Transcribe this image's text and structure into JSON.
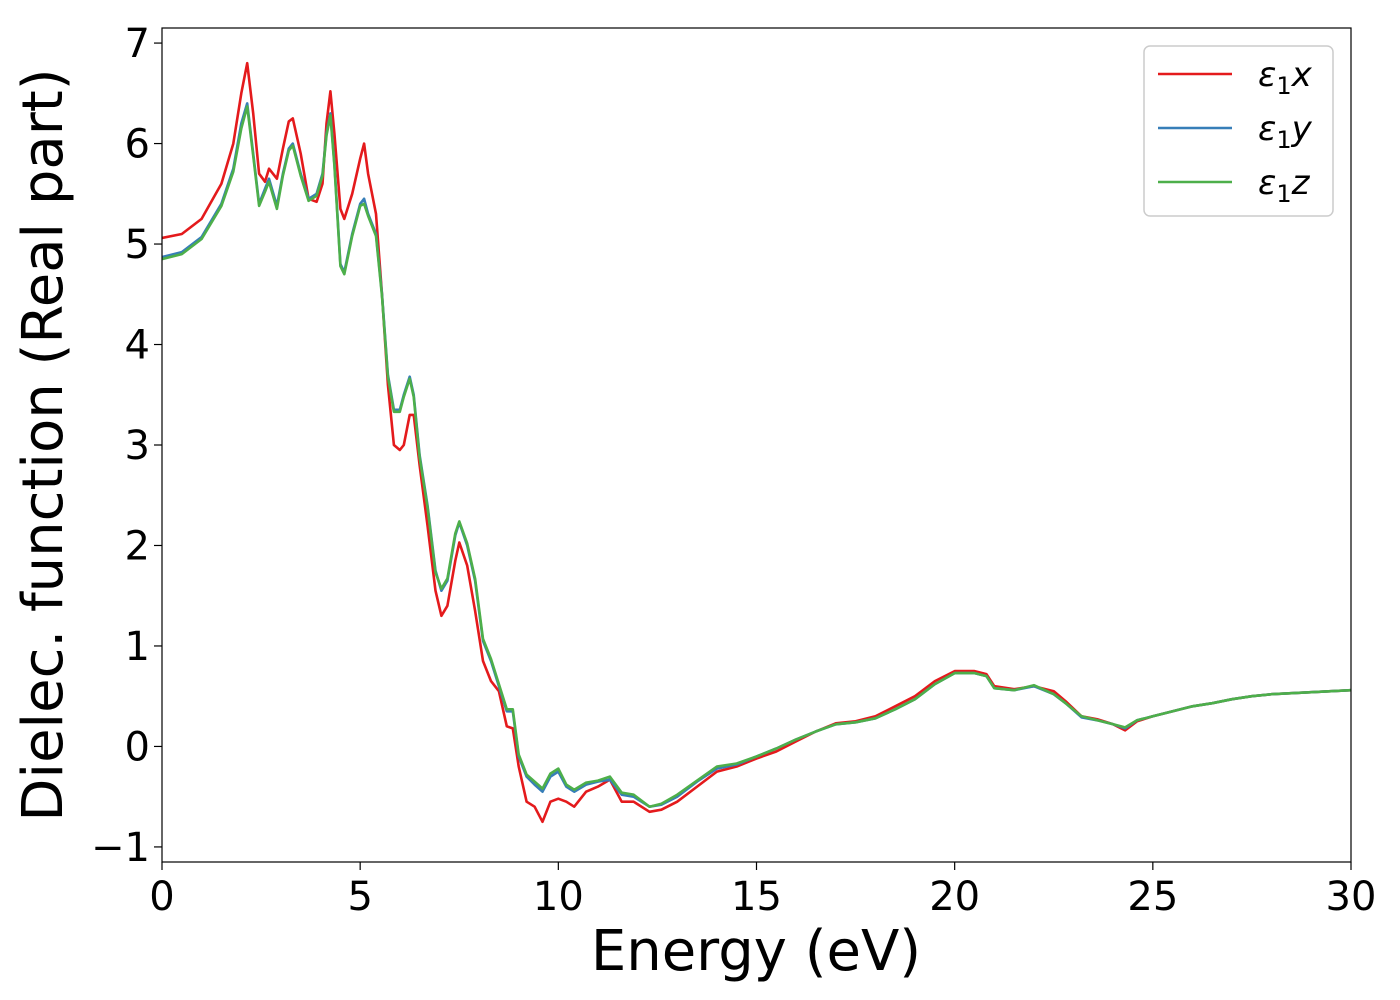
{
  "chart_data": {
    "type": "line",
    "title": "",
    "xlabel": "Energy (eV)",
    "ylabel": "Dielec. function (Real part)",
    "xlim": [
      0,
      30
    ],
    "ylim": [
      -1.15,
      7.15
    ],
    "xticks": [
      0,
      5,
      10,
      15,
      20,
      25,
      30
    ],
    "xtick_labels": [
      "0",
      "5",
      "10",
      "15",
      "20",
      "25",
      "30"
    ],
    "yticks": [
      -1,
      0,
      1,
      2,
      3,
      4,
      5,
      6,
      7
    ],
    "ytick_labels": [
      "−1",
      "0",
      "1",
      "2",
      "3",
      "4",
      "5",
      "6",
      "7"
    ],
    "grid": false,
    "legend_position": "top-right",
    "series": [
      {
        "name": "ε₁x",
        "legend_base": "ε",
        "legend_sub": "1",
        "legend_suffix": "x",
        "color": "#e41a1c",
        "points": [
          [
            0,
            5.06
          ],
          [
            0.5,
            5.1
          ],
          [
            1,
            5.25
          ],
          [
            1.5,
            5.6
          ],
          [
            1.8,
            6.0
          ],
          [
            2.0,
            6.5
          ],
          [
            2.15,
            6.8
          ],
          [
            2.3,
            6.3
          ],
          [
            2.45,
            5.7
          ],
          [
            2.6,
            5.62
          ],
          [
            2.7,
            5.75
          ],
          [
            2.9,
            5.65
          ],
          [
            3.05,
            5.95
          ],
          [
            3.2,
            6.22
          ],
          [
            3.3,
            6.25
          ],
          [
            3.5,
            5.9
          ],
          [
            3.7,
            5.45
          ],
          [
            3.9,
            5.42
          ],
          [
            4.05,
            5.6
          ],
          [
            4.15,
            6.2
          ],
          [
            4.25,
            6.52
          ],
          [
            4.35,
            6.1
          ],
          [
            4.5,
            5.35
          ],
          [
            4.6,
            5.25
          ],
          [
            4.8,
            5.5
          ],
          [
            5.0,
            5.85
          ],
          [
            5.1,
            6.0
          ],
          [
            5.2,
            5.7
          ],
          [
            5.4,
            5.3
          ],
          [
            5.55,
            4.5
          ],
          [
            5.7,
            3.6
          ],
          [
            5.85,
            3.0
          ],
          [
            6.0,
            2.95
          ],
          [
            6.1,
            3.0
          ],
          [
            6.25,
            3.3
          ],
          [
            6.35,
            3.3
          ],
          [
            6.5,
            2.8
          ],
          [
            6.7,
            2.2
          ],
          [
            6.9,
            1.55
          ],
          [
            7.05,
            1.3
          ],
          [
            7.2,
            1.4
          ],
          [
            7.4,
            1.85
          ],
          [
            7.5,
            2.03
          ],
          [
            7.7,
            1.8
          ],
          [
            7.9,
            1.35
          ],
          [
            8.1,
            0.85
          ],
          [
            8.3,
            0.65
          ],
          [
            8.5,
            0.55
          ],
          [
            8.7,
            0.2
          ],
          [
            8.85,
            0.18
          ],
          [
            9.0,
            -0.2
          ],
          [
            9.2,
            -0.55
          ],
          [
            9.4,
            -0.6
          ],
          [
            9.6,
            -0.75
          ],
          [
            9.8,
            -0.55
          ],
          [
            10.0,
            -0.52
          ],
          [
            10.2,
            -0.55
          ],
          [
            10.4,
            -0.6
          ],
          [
            10.7,
            -0.45
          ],
          [
            11.0,
            -0.4
          ],
          [
            11.3,
            -0.33
          ],
          [
            11.6,
            -0.55
          ],
          [
            11.9,
            -0.55
          ],
          [
            12.3,
            -0.65
          ],
          [
            12.6,
            -0.63
          ],
          [
            13.0,
            -0.55
          ],
          [
            13.5,
            -0.4
          ],
          [
            14.0,
            -0.25
          ],
          [
            14.5,
            -0.2
          ],
          [
            15.0,
            -0.12
          ],
          [
            15.5,
            -0.05
          ],
          [
            16.0,
            0.05
          ],
          [
            16.5,
            0.15
          ],
          [
            17.0,
            0.23
          ],
          [
            17.5,
            0.25
          ],
          [
            18.0,
            0.3
          ],
          [
            18.5,
            0.4
          ],
          [
            19.0,
            0.5
          ],
          [
            19.5,
            0.65
          ],
          [
            20.0,
            0.75
          ],
          [
            20.5,
            0.75
          ],
          [
            20.8,
            0.72
          ],
          [
            21.0,
            0.6
          ],
          [
            21.5,
            0.57
          ],
          [
            22.0,
            0.6
          ],
          [
            22.5,
            0.55
          ],
          [
            22.8,
            0.45
          ],
          [
            23.2,
            0.3
          ],
          [
            23.6,
            0.27
          ],
          [
            24.0,
            0.22
          ],
          [
            24.3,
            0.16
          ],
          [
            24.6,
            0.25
          ],
          [
            25.0,
            0.3
          ],
          [
            25.5,
            0.35
          ],
          [
            26.0,
            0.4
          ],
          [
            26.5,
            0.43
          ],
          [
            27.0,
            0.47
          ],
          [
            27.5,
            0.5
          ],
          [
            28.0,
            0.52
          ],
          [
            28.5,
            0.53
          ],
          [
            29.0,
            0.54
          ],
          [
            29.5,
            0.55
          ],
          [
            30.0,
            0.56
          ]
        ]
      },
      {
        "name": "ε₁y",
        "legend_base": "ε",
        "legend_sub": "1",
        "legend_suffix": "y",
        "color": "#377eb8",
        "points": [
          [
            0,
            4.87
          ],
          [
            0.5,
            4.92
          ],
          [
            1,
            5.07
          ],
          [
            1.5,
            5.4
          ],
          [
            1.8,
            5.75
          ],
          [
            2.0,
            6.2
          ],
          [
            2.15,
            6.4
          ],
          [
            2.3,
            5.9
          ],
          [
            2.45,
            5.4
          ],
          [
            2.6,
            5.55
          ],
          [
            2.7,
            5.65
          ],
          [
            2.9,
            5.38
          ],
          [
            3.05,
            5.7
          ],
          [
            3.2,
            5.95
          ],
          [
            3.3,
            6.0
          ],
          [
            3.5,
            5.7
          ],
          [
            3.7,
            5.45
          ],
          [
            3.9,
            5.5
          ],
          [
            4.05,
            5.7
          ],
          [
            4.15,
            6.1
          ],
          [
            4.25,
            6.3
          ],
          [
            4.35,
            5.8
          ],
          [
            4.5,
            4.8
          ],
          [
            4.6,
            4.72
          ],
          [
            4.8,
            5.1
          ],
          [
            5.0,
            5.4
          ],
          [
            5.1,
            5.45
          ],
          [
            5.2,
            5.3
          ],
          [
            5.4,
            5.1
          ],
          [
            5.55,
            4.5
          ],
          [
            5.7,
            3.7
          ],
          [
            5.85,
            3.35
          ],
          [
            6.0,
            3.35
          ],
          [
            6.1,
            3.5
          ],
          [
            6.25,
            3.68
          ],
          [
            6.35,
            3.5
          ],
          [
            6.5,
            2.9
          ],
          [
            6.7,
            2.4
          ],
          [
            6.9,
            1.75
          ],
          [
            7.05,
            1.55
          ],
          [
            7.2,
            1.65
          ],
          [
            7.4,
            2.1
          ],
          [
            7.5,
            2.23
          ],
          [
            7.7,
            2.0
          ],
          [
            7.9,
            1.65
          ],
          [
            8.1,
            1.05
          ],
          [
            8.3,
            0.85
          ],
          [
            8.5,
            0.6
          ],
          [
            8.7,
            0.35
          ],
          [
            8.85,
            0.35
          ],
          [
            9.0,
            -0.1
          ],
          [
            9.2,
            -0.3
          ],
          [
            9.4,
            -0.38
          ],
          [
            9.6,
            -0.45
          ],
          [
            9.8,
            -0.3
          ],
          [
            10.0,
            -0.25
          ],
          [
            10.2,
            -0.4
          ],
          [
            10.4,
            -0.45
          ],
          [
            10.7,
            -0.38
          ],
          [
            11.0,
            -0.35
          ],
          [
            11.3,
            -0.33
          ],
          [
            11.6,
            -0.48
          ],
          [
            11.9,
            -0.5
          ],
          [
            12.3,
            -0.6
          ],
          [
            12.6,
            -0.58
          ],
          [
            13.0,
            -0.5
          ],
          [
            13.5,
            -0.35
          ],
          [
            14.0,
            -0.22
          ],
          [
            14.5,
            -0.18
          ],
          [
            15.0,
            -0.1
          ],
          [
            15.5,
            -0.02
          ],
          [
            16.0,
            0.07
          ],
          [
            16.5,
            0.15
          ],
          [
            17.0,
            0.22
          ],
          [
            17.5,
            0.24
          ],
          [
            18.0,
            0.28
          ],
          [
            18.5,
            0.37
          ],
          [
            19.0,
            0.47
          ],
          [
            19.5,
            0.62
          ],
          [
            20.0,
            0.73
          ],
          [
            20.5,
            0.73
          ],
          [
            20.8,
            0.7
          ],
          [
            21.0,
            0.58
          ],
          [
            21.5,
            0.56
          ],
          [
            22.0,
            0.6
          ],
          [
            22.5,
            0.52
          ],
          [
            22.8,
            0.43
          ],
          [
            23.2,
            0.29
          ],
          [
            23.6,
            0.26
          ],
          [
            24.0,
            0.22
          ],
          [
            24.3,
            0.18
          ],
          [
            24.6,
            0.26
          ],
          [
            25.0,
            0.3
          ],
          [
            25.5,
            0.35
          ],
          [
            26.0,
            0.4
          ],
          [
            26.5,
            0.43
          ],
          [
            27.0,
            0.47
          ],
          [
            27.5,
            0.5
          ],
          [
            28.0,
            0.52
          ],
          [
            28.5,
            0.53
          ],
          [
            29.0,
            0.54
          ],
          [
            29.5,
            0.55
          ],
          [
            30.0,
            0.56
          ]
        ]
      },
      {
        "name": "ε₁z",
        "legend_base": "ε",
        "legend_sub": "1",
        "legend_suffix": "z",
        "color": "#4daf4a",
        "points": [
          [
            0,
            4.85
          ],
          [
            0.5,
            4.9
          ],
          [
            1,
            5.05
          ],
          [
            1.5,
            5.38
          ],
          [
            1.8,
            5.72
          ],
          [
            2.0,
            6.15
          ],
          [
            2.15,
            6.37
          ],
          [
            2.3,
            5.88
          ],
          [
            2.45,
            5.38
          ],
          [
            2.6,
            5.52
          ],
          [
            2.7,
            5.62
          ],
          [
            2.9,
            5.35
          ],
          [
            3.05,
            5.68
          ],
          [
            3.2,
            5.93
          ],
          [
            3.3,
            5.98
          ],
          [
            3.5,
            5.68
          ],
          [
            3.7,
            5.43
          ],
          [
            3.9,
            5.48
          ],
          [
            4.05,
            5.68
          ],
          [
            4.15,
            6.08
          ],
          [
            4.25,
            6.28
          ],
          [
            4.35,
            5.78
          ],
          [
            4.5,
            4.78
          ],
          [
            4.6,
            4.7
          ],
          [
            4.8,
            5.08
          ],
          [
            5.0,
            5.38
          ],
          [
            5.1,
            5.4
          ],
          [
            5.2,
            5.28
          ],
          [
            5.4,
            5.08
          ],
          [
            5.55,
            4.48
          ],
          [
            5.7,
            3.68
          ],
          [
            5.85,
            3.33
          ],
          [
            6.0,
            3.33
          ],
          [
            6.1,
            3.48
          ],
          [
            6.25,
            3.66
          ],
          [
            6.35,
            3.48
          ],
          [
            6.5,
            2.88
          ],
          [
            6.7,
            2.38
          ],
          [
            6.9,
            1.73
          ],
          [
            7.05,
            1.57
          ],
          [
            7.2,
            1.67
          ],
          [
            7.4,
            2.12
          ],
          [
            7.5,
            2.24
          ],
          [
            7.7,
            2.02
          ],
          [
            7.9,
            1.67
          ],
          [
            8.1,
            1.07
          ],
          [
            8.3,
            0.87
          ],
          [
            8.5,
            0.62
          ],
          [
            8.7,
            0.37
          ],
          [
            8.85,
            0.37
          ],
          [
            9.0,
            -0.08
          ],
          [
            9.2,
            -0.28
          ],
          [
            9.4,
            -0.35
          ],
          [
            9.6,
            -0.42
          ],
          [
            9.8,
            -0.27
          ],
          [
            10.0,
            -0.22
          ],
          [
            10.2,
            -0.38
          ],
          [
            10.4,
            -0.43
          ],
          [
            10.7,
            -0.36
          ],
          [
            11.0,
            -0.34
          ],
          [
            11.3,
            -0.3
          ],
          [
            11.6,
            -0.46
          ],
          [
            11.9,
            -0.48
          ],
          [
            12.3,
            -0.6
          ],
          [
            12.6,
            -0.57
          ],
          [
            13.0,
            -0.48
          ],
          [
            13.5,
            -0.34
          ],
          [
            14.0,
            -0.2
          ],
          [
            14.5,
            -0.17
          ],
          [
            15.0,
            -0.1
          ],
          [
            15.5,
            -0.02
          ],
          [
            16.0,
            0.07
          ],
          [
            16.5,
            0.15
          ],
          [
            17.0,
            0.22
          ],
          [
            17.5,
            0.24
          ],
          [
            18.0,
            0.28
          ],
          [
            18.5,
            0.37
          ],
          [
            19.0,
            0.47
          ],
          [
            19.5,
            0.62
          ],
          [
            20.0,
            0.73
          ],
          [
            20.5,
            0.73
          ],
          [
            20.8,
            0.7
          ],
          [
            21.0,
            0.58
          ],
          [
            21.5,
            0.56
          ],
          [
            22.0,
            0.61
          ],
          [
            22.5,
            0.52
          ],
          [
            22.8,
            0.43
          ],
          [
            23.2,
            0.3
          ],
          [
            23.6,
            0.26
          ],
          [
            24.0,
            0.22
          ],
          [
            24.3,
            0.19
          ],
          [
            24.6,
            0.26
          ],
          [
            25.0,
            0.3
          ],
          [
            25.5,
            0.35
          ],
          [
            26.0,
            0.4
          ],
          [
            26.5,
            0.43
          ],
          [
            27.0,
            0.47
          ],
          [
            27.5,
            0.5
          ],
          [
            28.0,
            0.52
          ],
          [
            28.5,
            0.53
          ],
          [
            29.0,
            0.54
          ],
          [
            29.5,
            0.55
          ],
          [
            30.0,
            0.56
          ]
        ]
      }
    ]
  }
}
